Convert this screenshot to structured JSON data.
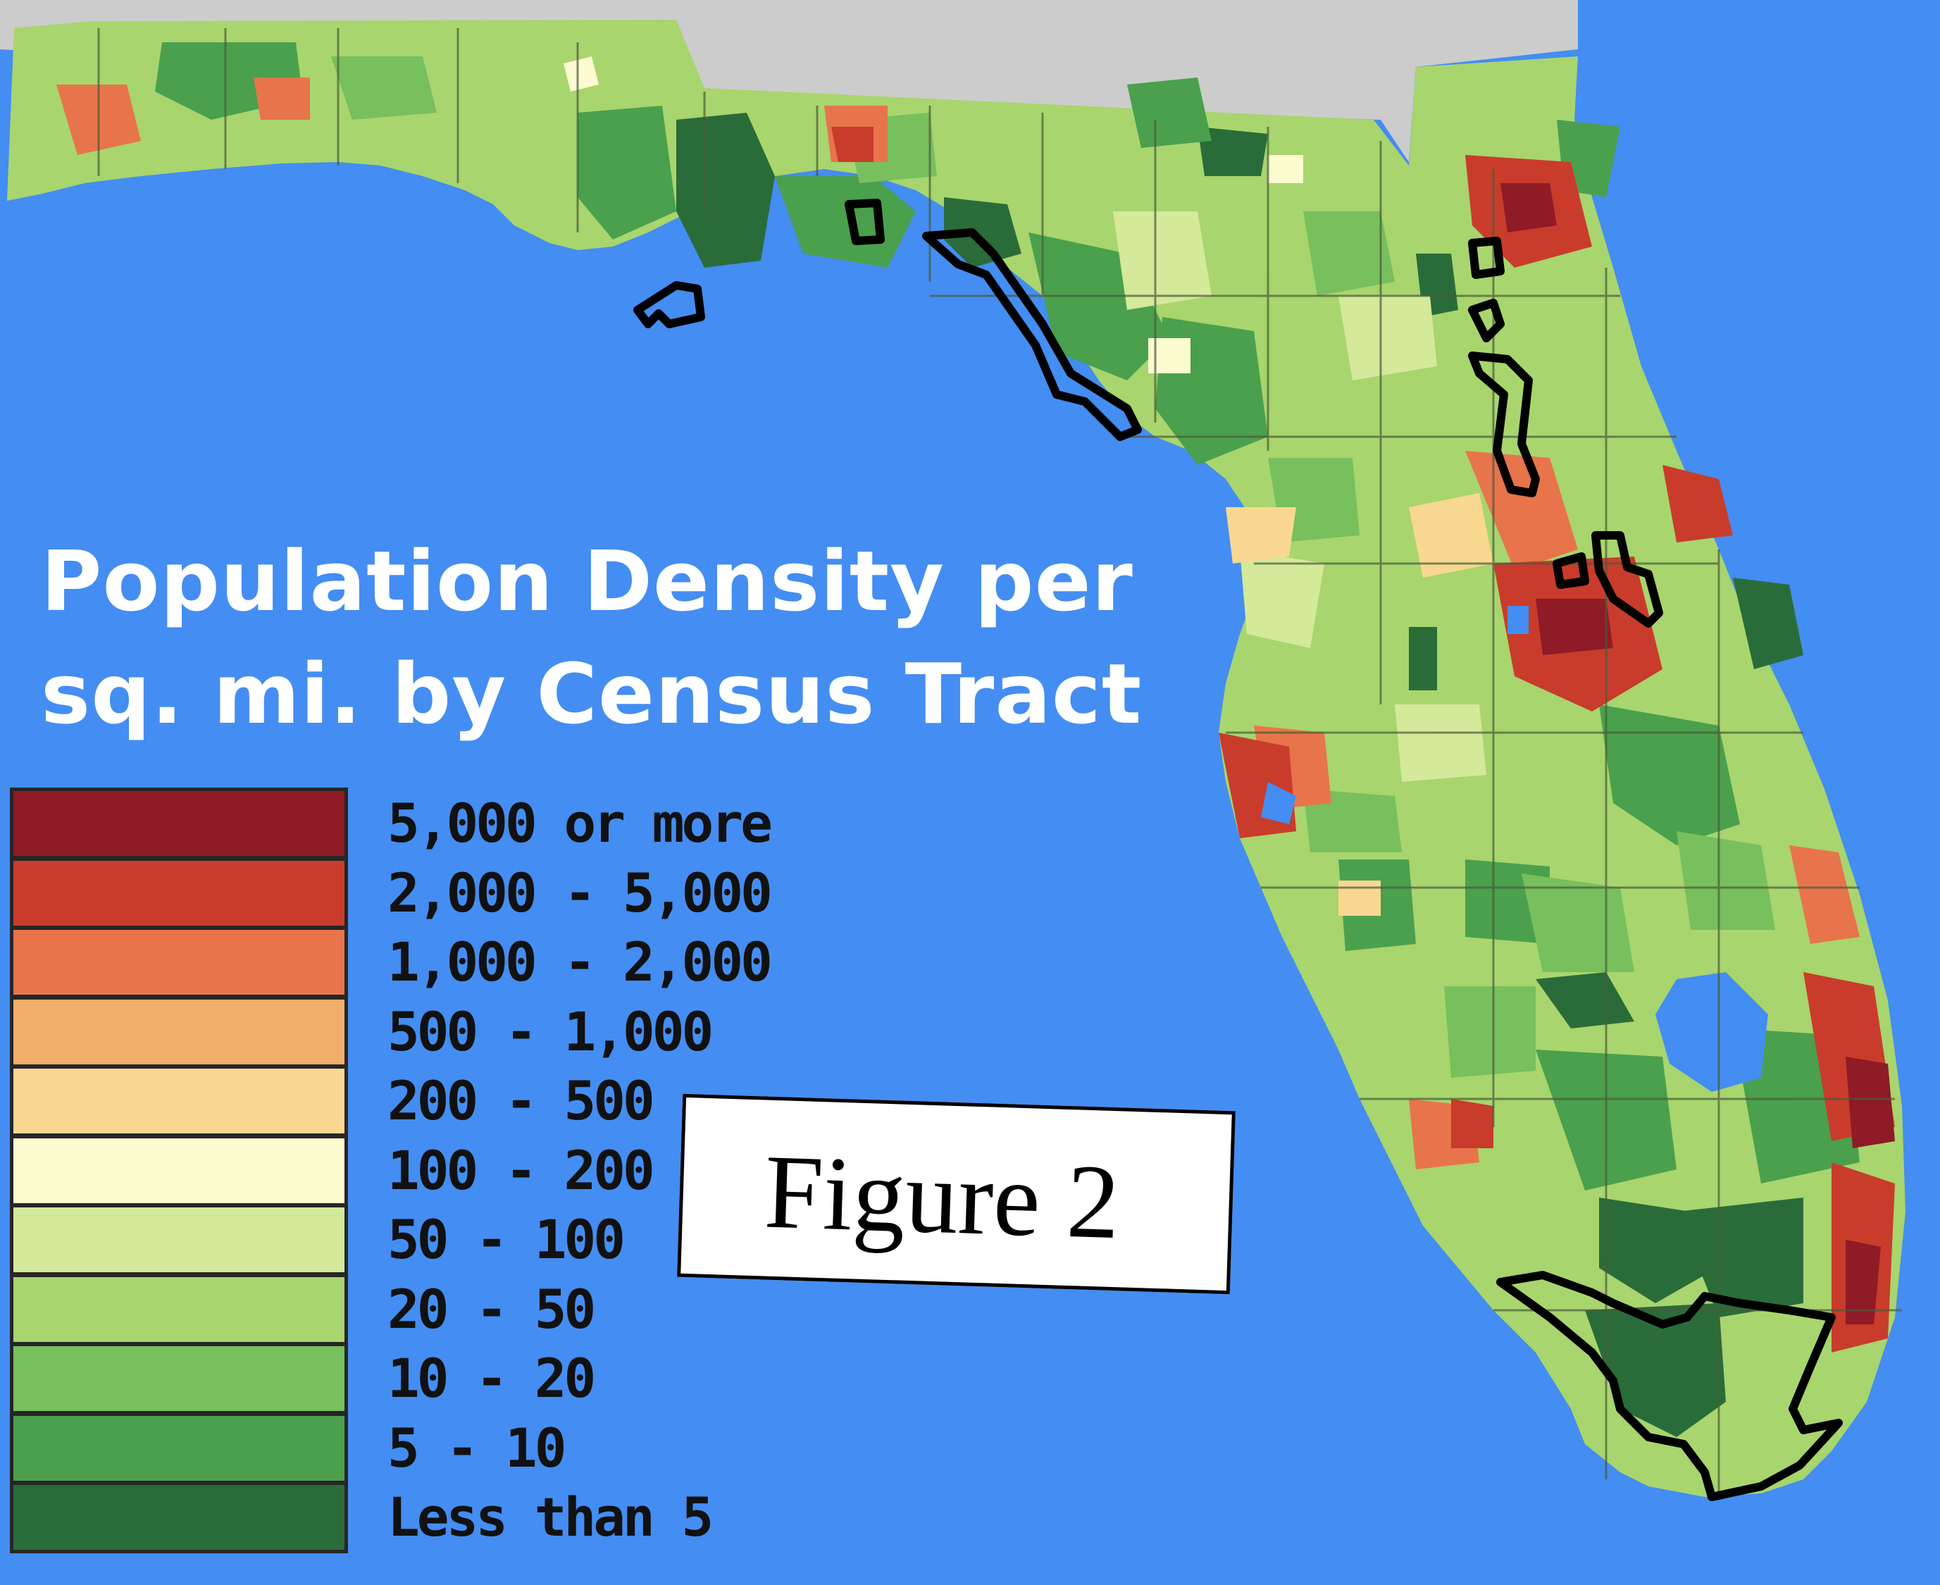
{
  "title": {
    "line1": "Population Density per",
    "line2": "sq. mi. by Census Tract"
  },
  "legend": [
    {
      "label": "5,000 or more",
      "color": "#8e1b26"
    },
    {
      "label": "2,000 - 5,000",
      "color": "#c93c2b"
    },
    {
      "label": "1,000 - 2,000",
      "color": "#e8744b"
    },
    {
      "label": "500 - 1,000",
      "color": "#f1ae6b"
    },
    {
      "label": "200 - 500",
      "color": "#f8d890"
    },
    {
      "label": "100 - 200",
      "color": "#fdfbd0"
    },
    {
      "label": "50 - 100",
      "color": "#d4e99a"
    },
    {
      "label": "20 - 50",
      "color": "#a8d56d"
    },
    {
      "label": "10 - 20",
      "color": "#78bf5d"
    },
    {
      "label": "5 - 10",
      "color": "#4aa04d"
    },
    {
      "label": "Less than 5",
      "color": "#2a6c39"
    }
  ],
  "figure_label": "Figure 2",
  "colors": {
    "water": "#448df2",
    "neighbor_land": "#cccccc",
    "county_border": "#4a5a3a",
    "highlight_outline": "#000000"
  }
}
